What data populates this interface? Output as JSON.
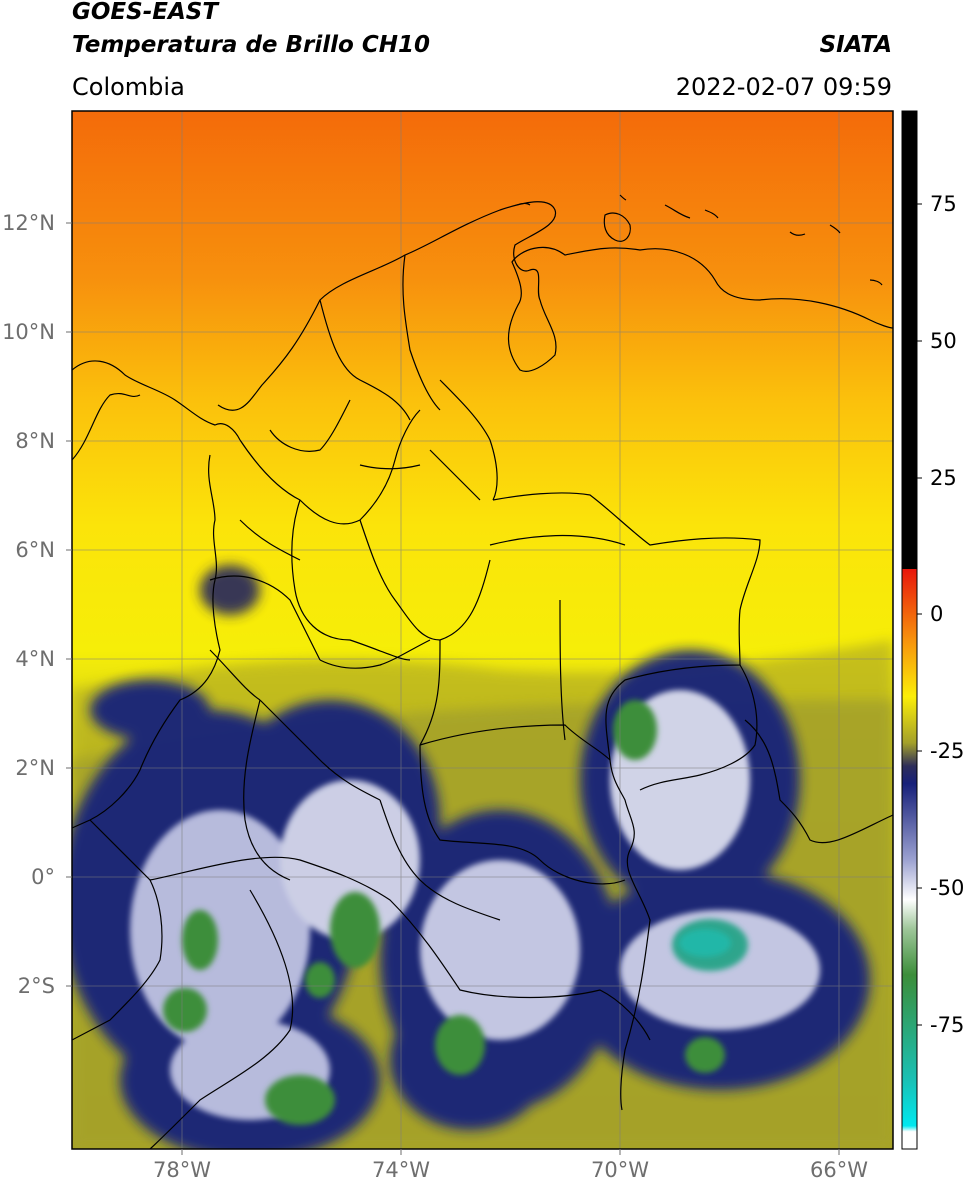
{
  "header": {
    "satellite": "GOES-EAST",
    "product": "Temperatura de Brillo CH10",
    "agency": "SIATA",
    "region": "Colombia",
    "timestamp": "2022-02-07 09:59"
  },
  "map": {
    "lat_ticks": [
      "12°N",
      "10°N",
      "8°N",
      "6°N",
      "4°N",
      "2°N",
      "0°",
      "2°S"
    ],
    "lon_ticks": [
      "78°W",
      "74°W",
      "70°W",
      "66°W"
    ],
    "extent": {
      "lon_min": -80.0,
      "lon_max": -65.0,
      "lat_min": -5.0,
      "lat_max": 14.0
    },
    "gridlines": true
  },
  "colorbar": {
    "ticks": [
      "75",
      "50",
      "25",
      "0",
      "-25",
      "-50",
      "-75"
    ],
    "colors": {
      "warm_saturated": "#000000",
      "red": "#e8160b",
      "orange": "#f7900d",
      "yellow": "#fbee08",
      "olive": "#a3a02a",
      "navy": "#17207a",
      "white": "#ffffff",
      "green": "#3c8e3a",
      "teal": "#1ac0b4",
      "cyan": "#00e8ef"
    }
  }
}
